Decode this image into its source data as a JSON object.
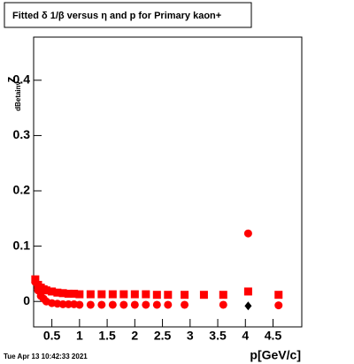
{
  "chart_data": {
    "type": "scatter",
    "title": "Fitted δ 1/β versus η and p for Primary kaon+",
    "xlabel": "p[GeV/c]",
    "ylabel": "z",
    "ylabel_subscript": "dBetainv",
    "timestamp": "Tue Apr 13 10:42:33 2021",
    "xlim": [
      0.17,
      5.02
    ],
    "ylim": [
      -0.046,
      0.478
    ],
    "xticks": [
      0.5,
      1,
      1.5,
      2,
      2.5,
      3,
      3.5,
      4,
      4.5
    ],
    "yticks": [
      0,
      0.1,
      0.2,
      0.3,
      0.4
    ],
    "series": [
      {
        "marker": "square",
        "color": "#ff0000",
        "x": [
          0.2,
          0.25,
          0.3,
          0.35,
          0.4,
          0.5,
          0.6,
          0.7,
          0.8,
          0.9,
          1.0,
          1.2,
          1.4,
          1.6,
          1.8,
          2.0,
          2.2,
          2.4,
          2.6,
          2.9,
          3.25,
          3.6,
          4.05,
          4.6
        ],
        "values": [
          0.04,
          0.03,
          0.025,
          0.022,
          0.02,
          0.018,
          0.016,
          0.015,
          0.014,
          0.014,
          0.013,
          0.013,
          0.013,
          0.013,
          0.013,
          0.013,
          0.013,
          0.012,
          0.012,
          0.012,
          0.012,
          0.012,
          0.018,
          0.012
        ]
      },
      {
        "marker": "circle",
        "color": "#ff0000",
        "x": [
          0.2,
          0.25,
          0.3,
          0.35,
          0.4,
          0.5,
          0.6,
          0.7,
          0.8,
          0.9,
          1.0,
          1.2,
          1.4,
          1.6,
          1.8,
          2.0,
          2.2,
          2.4,
          2.6,
          2.9,
          3.6,
          4.05,
          4.6
        ],
        "values": [
          0.035,
          0.02,
          0.01,
          0.005,
          0.0,
          -0.003,
          -0.004,
          -0.005,
          -0.005,
          -0.005,
          -0.006,
          -0.006,
          -0.006,
          -0.006,
          -0.006,
          -0.006,
          -0.006,
          -0.006,
          -0.006,
          -0.006,
          -0.006,
          0.123,
          -0.007
        ]
      },
      {
        "marker": "diamond",
        "color": "#000000",
        "x": [
          4.05
        ],
        "values": [
          -0.008
        ]
      }
    ]
  }
}
